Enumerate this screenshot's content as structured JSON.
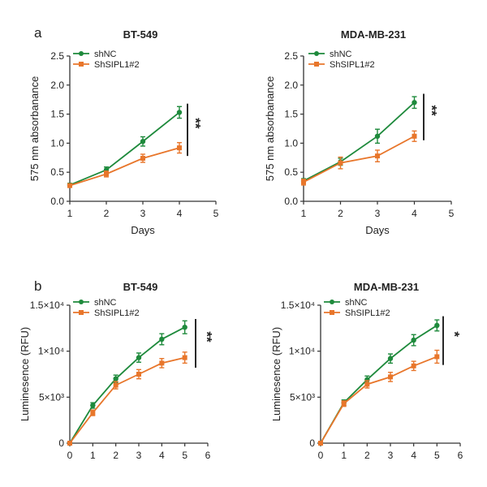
{
  "panels": [
    {
      "letter": "a"
    },
    {
      "letter": "b"
    }
  ],
  "colors": {
    "shNC": "#1e8a3c",
    "ShSIPL1#2": "#e8762b"
  },
  "chart_data": [
    {
      "type": "line",
      "panel": "a",
      "title": "BT-549",
      "xlabel": "Days",
      "ylabel": "575 nm absorbanance",
      "xlim": [
        1,
        5
      ],
      "ylim": [
        0,
        2.5
      ],
      "xticks": [
        1,
        2,
        3,
        4,
        5
      ],
      "xtick_labels": [
        "1",
        "2",
        "3",
        "4",
        "5"
      ],
      "yticks": [
        0,
        0.5,
        1,
        1.5,
        2,
        2.5
      ],
      "ytick_labels": [
        "0.0",
        "0.5",
        "1.0",
        "1.5",
        "2.0",
        "2.5"
      ],
      "x": [
        1,
        2,
        3,
        4
      ],
      "series": [
        {
          "name": "shNC",
          "values": [
            0.28,
            0.54,
            1.03,
            1.53
          ],
          "errors": [
            0.03,
            0.05,
            0.08,
            0.1
          ]
        },
        {
          "name": "ShSIPL1#2",
          "values": [
            0.27,
            0.47,
            0.74,
            0.92
          ],
          "errors": [
            0.03,
            0.05,
            0.07,
            0.09
          ]
        }
      ],
      "significance": {
        "label": "**",
        "y_range": [
          0.78,
          1.68
        ]
      }
    },
    {
      "type": "line",
      "panel": "a",
      "title": "MDA-MB-231",
      "xlabel": "Days",
      "ylabel": "575 nm absorbanance",
      "xlim": [
        1,
        5
      ],
      "ylim": [
        0,
        2.5
      ],
      "xticks": [
        1,
        2,
        3,
        4,
        5
      ],
      "xtick_labels": [
        "1",
        "2",
        "3",
        "4",
        "5"
      ],
      "yticks": [
        0,
        0.5,
        1,
        1.5,
        2,
        2.5
      ],
      "ytick_labels": [
        "0.0",
        "0.5",
        "1.0",
        "1.5",
        "2.0",
        "2.5"
      ],
      "x": [
        1,
        2,
        3,
        4
      ],
      "series": [
        {
          "name": "shNC",
          "values": [
            0.35,
            0.68,
            1.12,
            1.7
          ],
          "errors": [
            0.04,
            0.06,
            0.12,
            0.1
          ]
        },
        {
          "name": "ShSIPL1#2",
          "values": [
            0.33,
            0.66,
            0.78,
            1.12
          ],
          "errors": [
            0.05,
            0.1,
            0.1,
            0.09
          ]
        }
      ],
      "significance": {
        "label": "**",
        "y_range": [
          1.05,
          1.85
        ]
      }
    },
    {
      "type": "line",
      "panel": "b",
      "title": "BT-549",
      "xlabel": "",
      "ylabel": "Luminesence (RFU)",
      "xlim": [
        0,
        6
      ],
      "ylim": [
        0,
        15000
      ],
      "xticks": [
        0,
        1,
        2,
        3,
        4,
        5,
        6
      ],
      "xtick_labels": [
        "0",
        "1",
        "2",
        "3",
        "4",
        "5",
        "6"
      ],
      "yticks": [
        0,
        5000,
        10000,
        15000
      ],
      "ytick_labels": [
        "0",
        "5×10³",
        "1×10⁴",
        "1.5×10⁴"
      ],
      "x": [
        0,
        1,
        2,
        3,
        4,
        5
      ],
      "series": [
        {
          "name": "shNC",
          "values": [
            0,
            4100,
            7000,
            9300,
            11300,
            12600
          ],
          "errors": [
            0,
            300,
            400,
            500,
            600,
            700
          ]
        },
        {
          "name": "ShSIPL1#2",
          "values": [
            0,
            3300,
            6300,
            7500,
            8700,
            9300
          ],
          "errors": [
            0,
            300,
            400,
            500,
            500,
            600
          ]
        }
      ],
      "significance": {
        "label": "**",
        "y_range": [
          8200,
          13500
        ]
      }
    },
    {
      "type": "line",
      "panel": "b",
      "title": "MDA-MB-231",
      "xlabel": "",
      "ylabel": "Luminesence (RFU)",
      "xlim": [
        0,
        6
      ],
      "ylim": [
        0,
        15000
      ],
      "xticks": [
        0,
        1,
        2,
        3,
        4,
        5,
        6
      ],
      "xtick_labels": [
        "0",
        "1",
        "2",
        "3",
        "4",
        "5",
        "6"
      ],
      "yticks": [
        0,
        5000,
        10000,
        15000
      ],
      "ytick_labels": [
        "0",
        "5×10³",
        "1×10⁴",
        "1.5×10⁴"
      ],
      "x": [
        0,
        1,
        2,
        3,
        4,
        5
      ],
      "series": [
        {
          "name": "shNC",
          "values": [
            0,
            4400,
            6900,
            9200,
            11200,
            12800
          ],
          "errors": [
            0,
            300,
            400,
            500,
            600,
            600
          ]
        },
        {
          "name": "ShSIPL1#2",
          "values": [
            0,
            4300,
            6400,
            7200,
            8400,
            9400
          ],
          "errors": [
            0,
            300,
            400,
            500,
            500,
            700
          ]
        }
      ],
      "significance": {
        "label": "*",
        "y_range": [
          8500,
          13800
        ]
      }
    }
  ]
}
